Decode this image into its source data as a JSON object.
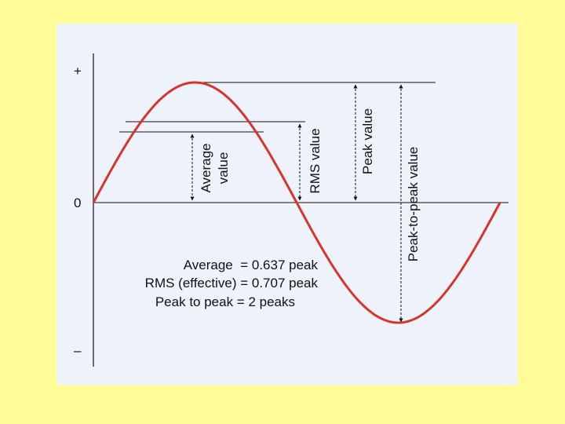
{
  "axis": {
    "plus_label": "+",
    "zero_label": "0",
    "minus_label": "–"
  },
  "labels": {
    "average_line1": "Average",
    "average_line2": "value",
    "rms": "RMS value",
    "peak": "Peak value",
    "peak_to_peak": "Peak-to-peak value"
  },
  "formulas": {
    "average": "Average  = 0.637 peak",
    "rms": "RMS (effective) = 0.707 peak",
    "peak_to_peak": "Peak to peak = 2 peaks"
  },
  "colors": {
    "wave": "#d9342b",
    "background": "#fffb96",
    "panel": "#eef3fb"
  }
}
